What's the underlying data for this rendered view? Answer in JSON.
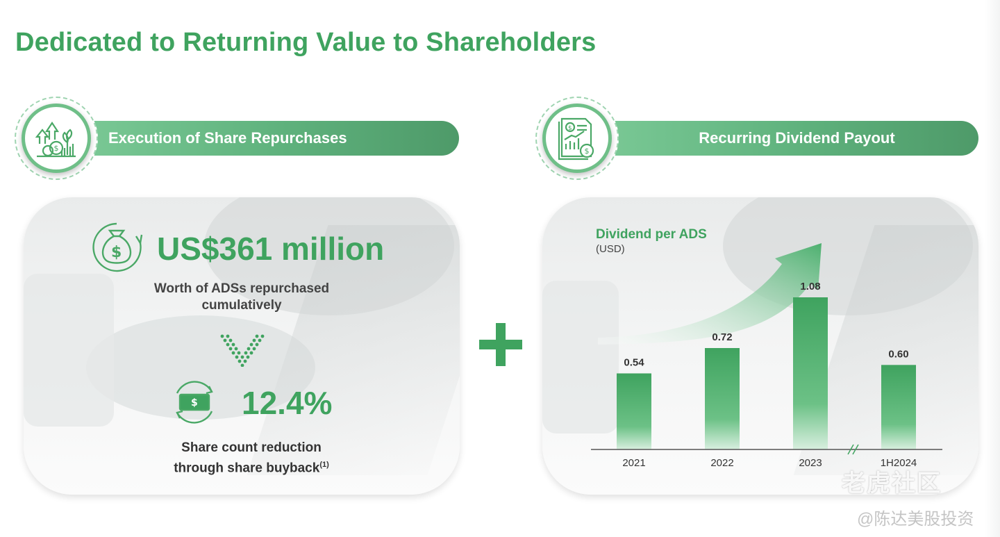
{
  "title": "Dedicated to Returning Value to Shareholders",
  "left_section": {
    "header": "Execution of Share Repurchases",
    "amount": "US$361 million",
    "amount_desc_line1": "Worth of ADSs repurchased",
    "amount_desc_line2": "cumulatively",
    "reduction": "12.4%",
    "reduction_desc_line1": "Share count reduction",
    "reduction_desc_line2": "through share buyback",
    "footnote_marker": "(1)"
  },
  "right_section": {
    "header": "Recurring Dividend Payout"
  },
  "chart_data": {
    "type": "bar",
    "title": "Dividend per ADS",
    "subtitle": "(USD)",
    "categories": [
      "2021",
      "2022",
      "2023",
      "1H2024"
    ],
    "values": [
      0.54,
      0.72,
      1.08,
      0.6
    ],
    "value_labels": [
      "0.54",
      "0.72",
      "1.08",
      "0.60"
    ],
    "ylim": [
      0,
      1.08
    ],
    "axis_break_before_last": true,
    "grid": false,
    "bar_color": "#3fa35f"
  },
  "watermark": {
    "brand": "老虎社区",
    "handle": "@陈达美股投资"
  },
  "colors": {
    "accent": "#3fa35f",
    "pill": "#5fb27d"
  }
}
